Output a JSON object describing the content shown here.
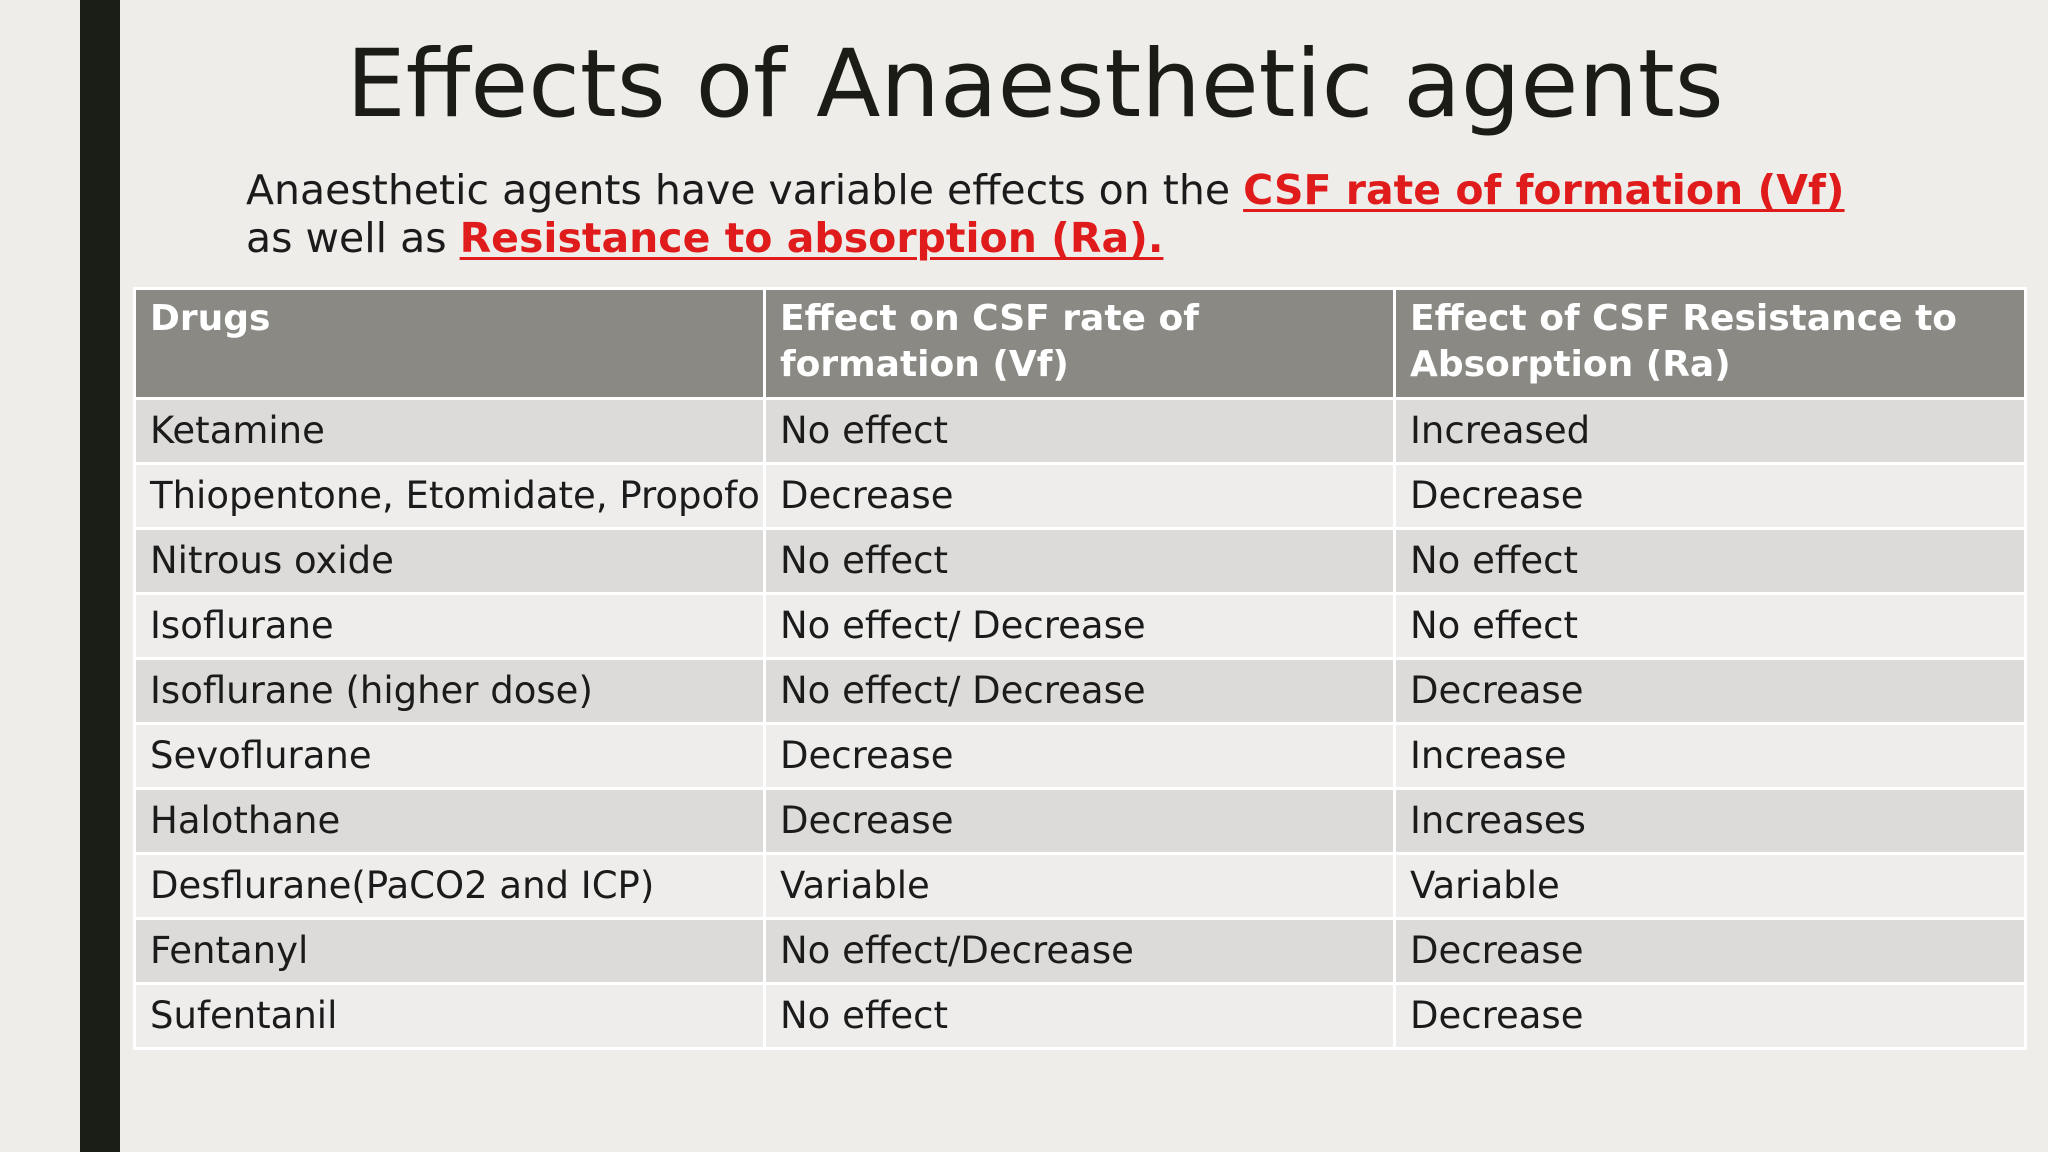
{
  "slide": {
    "title": "Effects of Anaesthetic agents",
    "intro": {
      "text_before": "Anaesthetic agents have variable effects on the ",
      "highlight_1": "CSF rate of formation (Vf) ",
      "text_middle": "as well as ",
      "highlight_2": "Resistance to absorption (Ra)."
    },
    "table": {
      "headers": [
        "Drugs",
        "Effect on CSF rate of formation (Vf)",
        "Effect of CSF Resistance to Absorption (Ra)"
      ],
      "rows": [
        [
          "Ketamine",
          "No effect",
          "Increased"
        ],
        [
          "Thiopentone, Etomidate, Propofol",
          "Decrease",
          "Decrease"
        ],
        [
          "Nitrous oxide",
          "No effect",
          "No effect"
        ],
        [
          "Isoflurane",
          "No effect/ Decrease",
          "No effect"
        ],
        [
          "Isoflurane (higher dose)",
          "No effect/ Decrease",
          "Decrease"
        ],
        [
          "Sevoflurane",
          "Decrease",
          "Increase"
        ],
        [
          "Halothane",
          "Decrease",
          "Increases"
        ],
        [
          "Desflurane(PaCO2 and ICP)",
          "Variable",
          "Variable"
        ],
        [
          "Fentanyl",
          "No effect/Decrease",
          "Decrease"
        ],
        [
          "Sufentanil",
          "No effect",
          "Decrease"
        ]
      ]
    }
  },
  "colors": {
    "background": "#efede9",
    "side_bar": "#1b1d17",
    "highlight": "#e01b1b",
    "header_bg": "#8a8984",
    "row_odd": "#dcdbd9",
    "row_even": "#eeedec"
  }
}
